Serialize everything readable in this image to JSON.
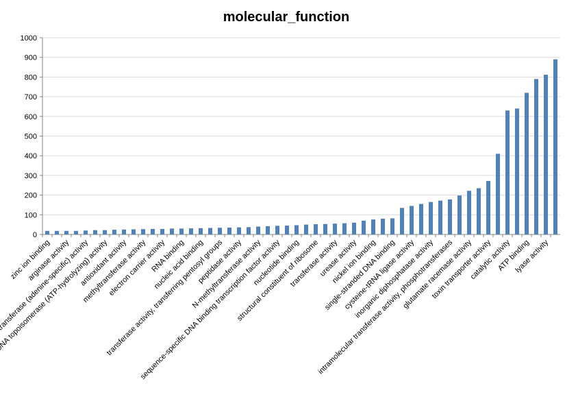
{
  "chart_data": {
    "type": "bar",
    "title": "molecular_function",
    "categories": [
      "zinc ion binding",
      null,
      "arginase activity",
      null,
      "site-specific DNA-methyltransferase (adenine-specific) activity",
      null,
      "DNA topoisomerase (ATP-hydrolyzing) activity",
      null,
      "antioxidant activity",
      null,
      "methyltransferase activity",
      null,
      "electron carrier activity",
      null,
      "RNA binding",
      null,
      "nucleic acid binding",
      null,
      "transferase activity, transferring pentosyl groups",
      null,
      "peptidase activity",
      null,
      "N-methyltransferase activity",
      null,
      "sequence-specific DNA binding transcription factor activity",
      null,
      "nucleotide binding",
      null,
      "structural constituent of ribosome",
      null,
      "transferase activity",
      null,
      "urease activity",
      null,
      "nickel ion binding",
      null,
      "single-stranded DNA binding",
      null,
      "cysteine-tRNA ligase activity",
      null,
      "inorganic diphosphatase activity",
      null,
      "intramolecular transferase activity, phosphotransferases",
      null,
      "glutamate racemase activity",
      null,
      "toxin transporter activity",
      null,
      "catalytic activity",
      null,
      "ATP binding",
      null,
      "lyase activity",
      null
    ],
    "values": [
      18,
      18,
      18,
      18,
      20,
      22,
      22,
      24,
      25,
      26,
      27,
      28,
      28,
      30,
      30,
      31,
      32,
      33,
      34,
      35,
      36,
      37,
      40,
      42,
      44,
      45,
      47,
      50,
      52,
      53,
      55,
      57,
      60,
      70,
      76,
      80,
      82,
      135,
      145,
      155,
      165,
      172,
      178,
      198,
      222,
      235,
      272,
      410,
      630,
      640,
      720,
      790,
      812,
      890
    ],
    "color": "#4f81bd",
    "ylim": [
      0,
      1000
    ],
    "yticks": [
      0,
      100,
      200,
      300,
      400,
      500,
      600,
      700,
      800,
      900,
      1000
    ],
    "grid": true
  }
}
